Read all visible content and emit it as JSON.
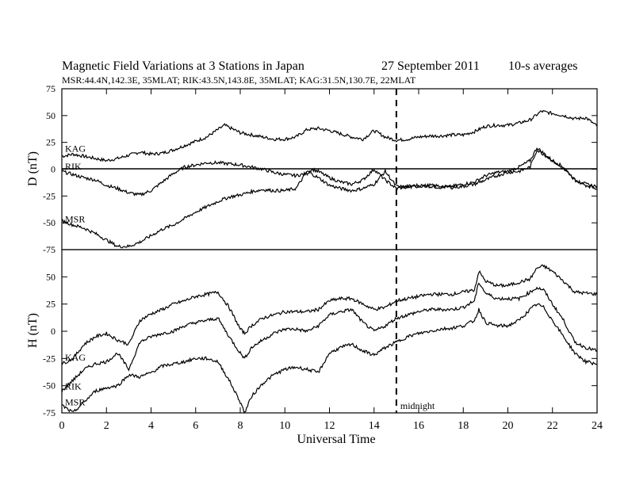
{
  "title": "Magnetic Field Variations at 3 Stations in Japan",
  "date": "27 September 2011",
  "averaging": "10-s averages",
  "subtitle": "MSR:44.4N,142.3E, 35MLAT;  RIK:43.5N,143.8E, 35MLAT;  KAG:31.5N,130.7E, 22MLAT",
  "chart_data": [
    {
      "type": "line",
      "panel": "D",
      "ylabel": "D (nT)",
      "ylim": [
        -75,
        75
      ],
      "yticks": [
        75,
        50,
        25,
        0,
        -25,
        -50,
        -75
      ],
      "xlim": [
        0,
        24
      ],
      "zero_line": true,
      "series": [
        {
          "name": "KAG",
          "x": [
            0,
            0.5,
            1,
            1.5,
            2,
            2.5,
            3,
            3.5,
            4,
            4.5,
            5,
            5.5,
            6,
            6.5,
            7,
            7.3,
            7.6,
            8,
            8.5,
            9,
            9.5,
            10,
            10.5,
            11,
            11.5,
            12,
            12.5,
            13,
            13.5,
            14,
            14.5,
            15,
            15.5,
            16,
            16.5,
            17,
            17.5,
            18,
            18.5,
            19,
            19.5,
            20,
            20.5,
            21,
            21.5,
            22,
            22.5,
            23,
            23.5,
            24
          ],
          "y": [
            12,
            14,
            12,
            10,
            8,
            10,
            13,
            16,
            14,
            15,
            18,
            22,
            26,
            30,
            37,
            41,
            38,
            34,
            32,
            30,
            28,
            28,
            30,
            37,
            38,
            36,
            33,
            30,
            28,
            36,
            30,
            27,
            28,
            30,
            31,
            31,
            32,
            32,
            35,
            40,
            41,
            41,
            43,
            46,
            54,
            52,
            50,
            47,
            48,
            40
          ]
        },
        {
          "name": "RIK",
          "x": [
            0,
            0.5,
            1,
            1.5,
            2,
            2.5,
            3,
            3.5,
            4,
            4.5,
            5,
            5.5,
            6,
            6.5,
            7,
            7.5,
            8,
            8.5,
            9,
            9.5,
            10,
            10.5,
            11,
            11.2,
            11.5,
            12,
            12.5,
            13,
            13.5,
            14,
            14.5,
            15,
            15.5,
            16,
            16.5,
            17,
            17.5,
            18,
            18.5,
            19,
            19.5,
            20,
            20.5,
            21,
            21.3,
            21.6,
            22,
            22.5,
            23,
            23.5,
            24
          ],
          "y": [
            -2,
            -5,
            -8,
            -10,
            -15,
            -18,
            -22,
            -24,
            -20,
            -12,
            -4,
            2,
            4,
            6,
            6,
            5,
            4,
            2,
            0,
            -3,
            -5,
            -6,
            -4,
            0,
            -2,
            -8,
            -12,
            -14,
            -10,
            0,
            -10,
            -18,
            -16,
            -15,
            -16,
            -17,
            -16,
            -14,
            -12,
            -6,
            -3,
            -2,
            2,
            8,
            20,
            15,
            8,
            2,
            -10,
            -14,
            -16
          ]
        },
        {
          "name": "MSR",
          "x": [
            0,
            0.5,
            1,
            1.5,
            2,
            2.5,
            3,
            3.5,
            4,
            4.5,
            5,
            5.5,
            6,
            6.5,
            7,
            7.5,
            8,
            8.5,
            9,
            9.5,
            10,
            10.5,
            11,
            11.5,
            12,
            12.5,
            13,
            13.5,
            14,
            14.5,
            15,
            15.5,
            16,
            16.5,
            17,
            17.5,
            18,
            18.5,
            19,
            19.5,
            20,
            20.5,
            21,
            21.3,
            21.6,
            22,
            22.5,
            23,
            23.5,
            24
          ],
          "y": [
            -48,
            -52,
            -55,
            -60,
            -66,
            -72,
            -72,
            -68,
            -62,
            -56,
            -52,
            -46,
            -40,
            -35,
            -30,
            -26,
            -24,
            -21,
            -19,
            -20,
            -20,
            -18,
            -2,
            -8,
            -15,
            -18,
            -20,
            -18,
            -14,
            -2,
            -16,
            -17,
            -16,
            -15,
            -16,
            -17,
            -16,
            -14,
            -10,
            -6,
            -3,
            -2,
            2,
            18,
            14,
            8,
            0,
            -10,
            -15,
            -18
          ]
        }
      ]
    },
    {
      "type": "line",
      "panel": "H",
      "ylabel": "H (nT)",
      "ylim": [
        -75,
        75
      ],
      "yticks": [
        50,
        25,
        0,
        -25,
        -50,
        -75
      ],
      "xlim": [
        0,
        24
      ],
      "xlabel": "Universal Time",
      "xticks": [
        0,
        2,
        4,
        6,
        8,
        10,
        12,
        14,
        16,
        18,
        20,
        22,
        24
      ],
      "annotation": {
        "x": 15,
        "label": "midnight"
      },
      "series": [
        {
          "name": "KAG",
          "x": [
            0,
            0.5,
            1,
            1.5,
            2,
            2.5,
            3,
            3.5,
            4,
            4.5,
            5,
            5.5,
            6,
            6.5,
            7,
            7.5,
            8,
            8.2,
            8.5,
            9,
            9.5,
            10,
            10.5,
            11,
            11.5,
            12,
            12.5,
            13,
            13.5,
            14,
            14.5,
            15,
            15.5,
            16,
            16.5,
            17,
            17.5,
            18,
            18.5,
            18.7,
            19,
            19.5,
            20,
            20.5,
            21,
            21.3,
            21.6,
            22,
            22.5,
            23,
            23.5,
            24
          ],
          "y": [
            -30,
            -25,
            -12,
            -5,
            -2,
            -8,
            -12,
            10,
            16,
            20,
            25,
            28,
            32,
            34,
            36,
            22,
            2,
            -2,
            5,
            12,
            15,
            18,
            18,
            18,
            20,
            28,
            30,
            30,
            25,
            20,
            22,
            28,
            30,
            32,
            34,
            34,
            34,
            36,
            38,
            55,
            46,
            42,
            42,
            45,
            48,
            58,
            60,
            55,
            46,
            36,
            35,
            34
          ]
        },
        {
          "name": "RIK",
          "x": [
            0,
            0.5,
            1,
            1.5,
            2,
            2.5,
            3,
            3.5,
            4,
            4.5,
            5,
            5.5,
            6,
            6.5,
            7,
            7.5,
            8,
            8.2,
            8.5,
            9,
            9.5,
            10,
            10.5,
            11,
            11.5,
            12,
            12.5,
            13,
            13.5,
            14,
            14.5,
            15,
            15.5,
            16,
            16.5,
            17,
            17.5,
            18,
            18.5,
            18.7,
            19,
            19.5,
            20,
            20.5,
            21,
            21.3,
            21.6,
            22,
            22.5,
            23,
            23.5,
            24
          ],
          "y": [
            -55,
            -45,
            -35,
            -30,
            -28,
            -20,
            -35,
            -10,
            -5,
            -2,
            0,
            5,
            8,
            10,
            12,
            -5,
            -20,
            -25,
            -15,
            -8,
            -2,
            2,
            2,
            0,
            5,
            15,
            18,
            20,
            8,
            0,
            5,
            12,
            15,
            18,
            20,
            20,
            20,
            22,
            28,
            45,
            35,
            30,
            30,
            30,
            36,
            40,
            38,
            25,
            10,
            -10,
            -15,
            -18
          ]
        },
        {
          "name": "MSR",
          "x": [
            0,
            0.5,
            1,
            1.5,
            2,
            2.5,
            3,
            3.5,
            4,
            4.5,
            5,
            5.5,
            6,
            6.5,
            7,
            7.5,
            8,
            8.2,
            8.5,
            9,
            9.5,
            10,
            10.5,
            11,
            11.5,
            12,
            12.5,
            13,
            13.5,
            14,
            14.5,
            15,
            15.5,
            16,
            16.5,
            17,
            17.5,
            18,
            18.5,
            18.7,
            19,
            19.5,
            20,
            20.5,
            21,
            21.3,
            21.6,
            22,
            22.5,
            23,
            23.5,
            24
          ],
          "y": [
            -68,
            -75,
            -65,
            -55,
            -52,
            -50,
            -40,
            -42,
            -38,
            -32,
            -30,
            -28,
            -25,
            -25,
            -28,
            -45,
            -65,
            -75,
            -60,
            -48,
            -40,
            -35,
            -33,
            -35,
            -38,
            -20,
            -15,
            -12,
            -18,
            -22,
            -15,
            -10,
            -5,
            -2,
            0,
            2,
            3,
            5,
            10,
            20,
            8,
            5,
            5,
            10,
            20,
            25,
            22,
            10,
            -5,
            -20,
            -28,
            -30
          ]
        }
      ]
    }
  ]
}
